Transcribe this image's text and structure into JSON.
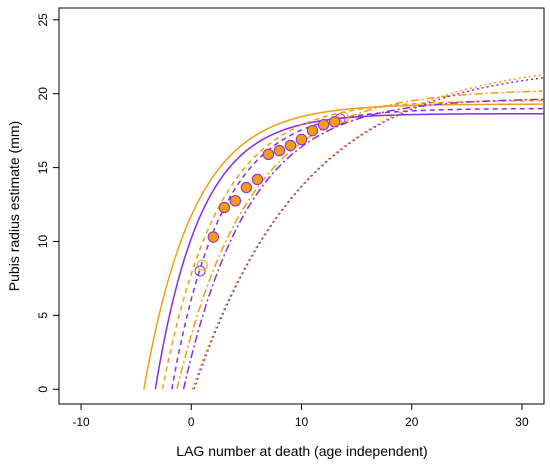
{
  "chart_data": {
    "type": "scatter",
    "title": "",
    "xlabel": "LAG number at death (age independent)",
    "ylabel": "Pubis radius estimate (mm)",
    "xlim": [
      -12,
      32
    ],
    "ylim": [
      -1,
      25.8
    ],
    "xticks": [
      -10,
      0,
      10,
      20,
      30
    ],
    "yticks": [
      0,
      5,
      10,
      15,
      20,
      25
    ],
    "grid": false,
    "legend": "none",
    "colors": {
      "orange": "#f39c12",
      "purple": "#8a2be2"
    },
    "points": [
      {
        "x": 2,
        "y": 10.3
      },
      {
        "x": 3,
        "y": 12.3
      },
      {
        "x": 4,
        "y": 12.75
      },
      {
        "x": 5,
        "y": 13.65
      },
      {
        "x": 6,
        "y": 14.2
      },
      {
        "x": 7,
        "y": 15.9
      },
      {
        "x": 8,
        "y": 16.15
      },
      {
        "x": 9,
        "y": 16.5
      },
      {
        "x": 10,
        "y": 16.9
      },
      {
        "x": 11,
        "y": 17.5
      },
      {
        "x": 12,
        "y": 17.9
      },
      {
        "x": 13,
        "y": 18.1
      }
    ],
    "open_points": [
      {
        "x": 0.8,
        "y": 8.0,
        "color": "#8a2be2"
      },
      {
        "x": 1.0,
        "y": 8.4,
        "color": "#f39c12"
      },
      {
        "x": 13.5,
        "y": 18.3,
        "color": "#8a2be2"
      },
      {
        "x": 13.8,
        "y": 18.4,
        "color": "#f39c12"
      }
    ],
    "curves": [
      {
        "color": "#f39c12",
        "dash": "",
        "x0": -4.3,
        "ymax": 19.3,
        "k": 0.218
      },
      {
        "color": "#8a2be2",
        "dash": "",
        "x0": -3.26,
        "ymax": 18.65,
        "k": 0.243
      },
      {
        "color": "#f39c12",
        "dash": "5,4",
        "x0": -2.61,
        "ymax": 19.55,
        "k": 0.195
      },
      {
        "color": "#8a2be2",
        "dash": "5,4",
        "x0": -1.77,
        "ymax": 19.0,
        "k": 0.218
      },
      {
        "color": "#f39c12",
        "dash": "8,3,2,3",
        "x0": -1.3,
        "ymax": 20.3,
        "k": 0.153
      },
      {
        "color": "#8a2be2",
        "dash": "8,3,2,3",
        "x0": -0.7,
        "ymax": 19.7,
        "k": 0.167
      },
      {
        "color": "#f39c12",
        "dash": "2,3",
        "x0": 0.1,
        "ymax": 22.3,
        "k": 0.097
      },
      {
        "color": "#8a2be2",
        "dash": "2,3",
        "x0": 0.25,
        "ymax": 22.0,
        "k": 0.1
      }
    ]
  }
}
